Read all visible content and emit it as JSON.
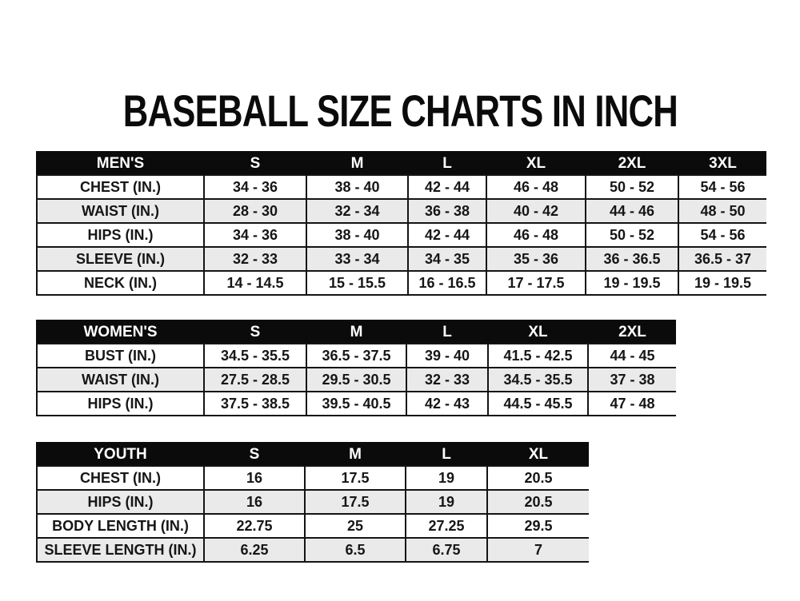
{
  "page": {
    "title": "BASEBALL SIZE CHARTS IN INCH"
  },
  "colors": {
    "header_bg": "#0b0b0b",
    "header_text": "#ffffff",
    "row_bg": "#ffffff",
    "row_alt_bg": "#ebeaeb",
    "border": "#141414",
    "text": "#161616"
  },
  "tables": [
    {
      "id": "mens",
      "header": [
        "MEN'S",
        "S",
        "M",
        "L",
        "XL",
        "2XL",
        "3XL"
      ],
      "rows": [
        [
          "CHEST (IN.)",
          "34 - 36",
          "38 - 40",
          "42 - 44",
          "46 - 48",
          "50 - 52",
          "54 - 56"
        ],
        [
          "WAIST (IN.)",
          "28 - 30",
          "32 - 34",
          "36 - 38",
          "40 - 42",
          "44 - 46",
          "48 - 50"
        ],
        [
          "HIPS (IN.)",
          "34 - 36",
          "38 - 40",
          "42 - 44",
          "46 - 48",
          "50 - 52",
          "54 - 56"
        ],
        [
          "SLEEVE (IN.)",
          "32 - 33",
          "33 - 34",
          "34 - 35",
          "35 - 36",
          "36 - 36.5",
          "36.5 - 37"
        ],
        [
          "NECK (IN.)",
          "14 - 14.5",
          "15 - 15.5",
          "16 - 16.5",
          "17 - 17.5",
          "19 - 19.5",
          "19 - 19.5"
        ]
      ]
    },
    {
      "id": "womens",
      "header": [
        "WOMEN'S",
        "S",
        "M",
        "L",
        "XL",
        "2XL"
      ],
      "rows": [
        [
          "BUST (IN.)",
          "34.5 - 35.5",
          "36.5 - 37.5",
          "39 - 40",
          "41.5 - 42.5",
          "44 - 45"
        ],
        [
          "WAIST (IN.)",
          "27.5 - 28.5",
          "29.5 - 30.5",
          "32 - 33",
          "34.5 - 35.5",
          "37 - 38"
        ],
        [
          "HIPS (IN.)",
          "37.5 - 38.5",
          "39.5 - 40.5",
          "42 - 43",
          "44.5 - 45.5",
          "47 - 48"
        ]
      ]
    },
    {
      "id": "youth",
      "header": [
        "YOUTH",
        "S",
        "M",
        "L",
        "XL"
      ],
      "rows": [
        [
          "CHEST (IN.)",
          "16",
          "17.5",
          "19",
          "20.5"
        ],
        [
          "HIPS (IN.)",
          "16",
          "17.5",
          "19",
          "20.5"
        ],
        [
          "BODY LENGTH (IN.)",
          "22.75",
          "25",
          "27.25",
          "29.5"
        ],
        [
          "SLEEVE LENGTH (IN.)",
          "6.25",
          "6.5",
          "6.75",
          "7"
        ]
      ]
    }
  ]
}
